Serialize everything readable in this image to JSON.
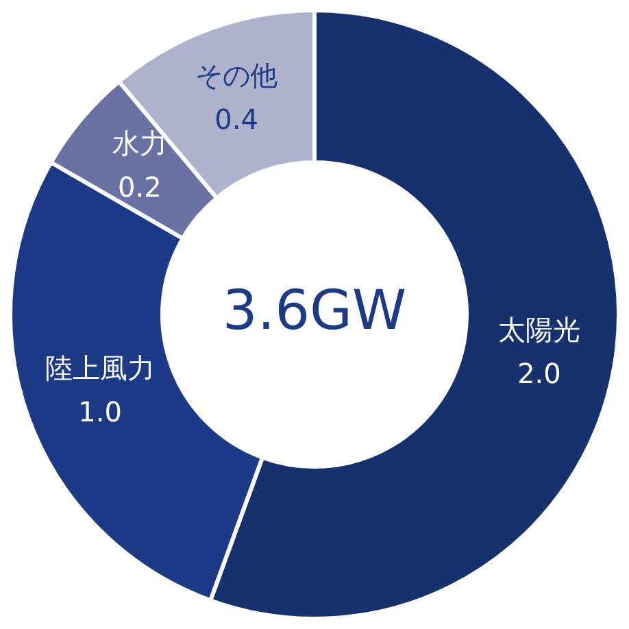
{
  "chart_data": {
    "type": "donut",
    "categories": [
      "太陽光",
      "陸上風力",
      "水力",
      "その他"
    ],
    "values": [
      2.0,
      1.0,
      0.2,
      0.4
    ],
    "colors": [
      "#17306e",
      "#1c3a85",
      "#6a72a3",
      "#aeb2cc"
    ],
    "value_labels": [
      "2.0",
      "1.0",
      "0.2",
      "0.4"
    ],
    "annotations": [
      "3.6GW"
    ],
    "legend": false
  }
}
